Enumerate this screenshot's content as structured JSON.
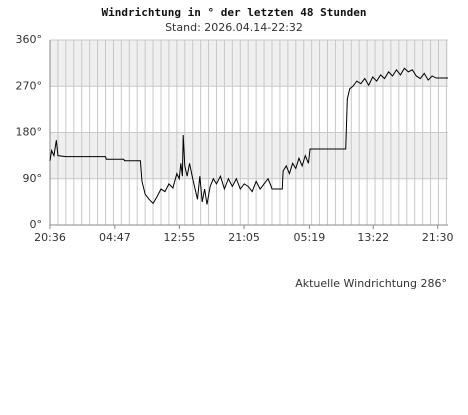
{
  "chart_data": {
    "type": "line",
    "title": "Windrichtung in ° der letzten 48 Stunden",
    "subtitle": "Stand: 2026.04.14-22:32",
    "annotation": "Aktuelle Windrichtung 286°",
    "color": "#000000",
    "grid": true,
    "xlim": [
      0,
      50.2
    ],
    "ylim": [
      0,
      360
    ],
    "xticks": [
      {
        "value": 0,
        "label": "20:36"
      },
      {
        "value": 8.18,
        "label": "04:47"
      },
      {
        "value": 16.32,
        "label": "12:55"
      },
      {
        "value": 24.48,
        "label": "21:05"
      },
      {
        "value": 32.72,
        "label": "05:19"
      },
      {
        "value": 40.77,
        "label": "13:22"
      },
      {
        "value": 48.9,
        "label": "21:30"
      }
    ],
    "yticks": [
      {
        "value": 0,
        "label": "0°"
      },
      {
        "value": 90,
        "label": "90°"
      },
      {
        "value": 180,
        "label": "180°"
      },
      {
        "value": 270,
        "label": "270°"
      },
      {
        "value": 360,
        "label": "360°"
      }
    ],
    "x": [
      0,
      0.2,
      0.5,
      0.8,
      1.0,
      2,
      7,
      7.1,
      9.3,
      9.4,
      11.4,
      11.6,
      12,
      12.5,
      13,
      13.5,
      14,
      14.5,
      15,
      15.5,
      16,
      16.3,
      16.5,
      16.7,
      16.8,
      17,
      17.3,
      17.6,
      18,
      18.3,
      18.6,
      18.9,
      19.2,
      19.5,
      19.8,
      20.2,
      20.6,
      21,
      21.5,
      22,
      22.5,
      23,
      23.5,
      24,
      24.5,
      25,
      25.5,
      26,
      26.5,
      27,
      27.5,
      27.9,
      28,
      29.3,
      29.4,
      29.8,
      30.2,
      30.6,
      31,
      31.4,
      31.8,
      32.2,
      32.6,
      32.8,
      37.3,
      37.5,
      37.8,
      38.2,
      38.7,
      39.2,
      39.7,
      40.2,
      40.7,
      41.2,
      41.7,
      42.2,
      42.7,
      43.2,
      43.7,
      44.2,
      44.7,
      45.2,
      45.7,
      46.2,
      46.7,
      47.2,
      47.7,
      48.2,
      48.7,
      50.2
    ],
    "values": [
      125,
      145,
      135,
      165,
      135,
      133,
      133,
      128,
      128,
      125,
      125,
      85,
      60,
      50,
      42,
      55,
      70,
      65,
      80,
      72,
      100,
      90,
      120,
      95,
      175,
      115,
      95,
      120,
      90,
      70,
      50,
      95,
      45,
      70,
      40,
      75,
      90,
      80,
      95,
      70,
      90,
      75,
      90,
      70,
      80,
      75,
      65,
      85,
      70,
      80,
      90,
      75,
      70,
      70,
      105,
      115,
      100,
      120,
      110,
      130,
      115,
      135,
      120,
      148,
      148,
      245,
      265,
      270,
      280,
      275,
      285,
      272,
      288,
      280,
      292,
      285,
      298,
      290,
      302,
      292,
      305,
      298,
      302,
      290,
      285,
      295,
      282,
      290,
      286,
      286
    ]
  }
}
